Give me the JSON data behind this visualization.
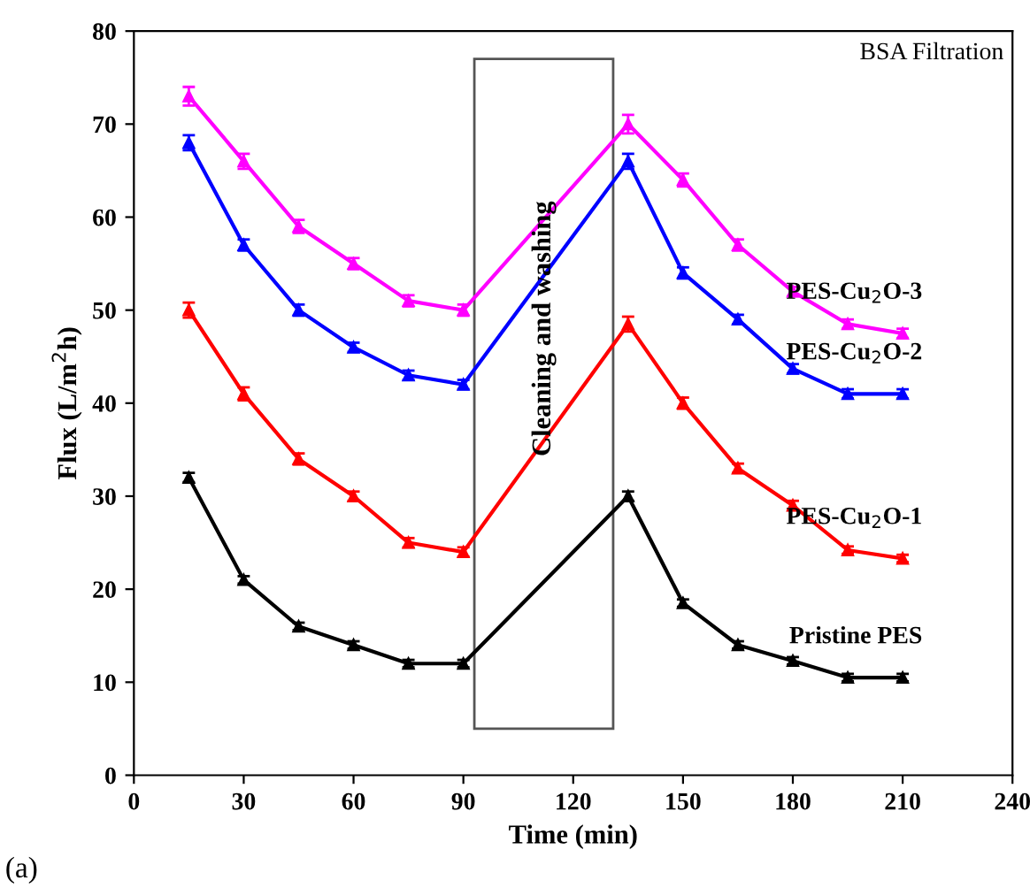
{
  "chart_data": {
    "type": "line",
    "xlabel": "Time (min)",
    "ylabel": "Flux (L/m$^{2}$h)",
    "x": [
      15,
      30,
      45,
      60,
      75,
      90,
      135,
      150,
      165,
      180,
      195,
      210
    ],
    "series": [
      {
        "name": "Pristine PES",
        "color": "#000000",
        "values": [
          32,
          21,
          16,
          14,
          12,
          12,
          30,
          18.5,
          14,
          12.3,
          10.5,
          10.5
        ],
        "errors": [
          0.5,
          0.4,
          0.4,
          0.4,
          0.4,
          0.4,
          0.5,
          0.4,
          0.4,
          0.4,
          0.4,
          0.4
        ]
      },
      {
        "name": "PES-Cu$_{2}$O-1",
        "color": "#ff0000",
        "values": [
          50,
          41,
          34,
          30,
          25,
          24,
          48.5,
          40,
          33,
          29,
          24.2,
          23.3
        ],
        "errors": [
          0.8,
          0.7,
          0.6,
          0.5,
          0.5,
          0.5,
          0.8,
          0.6,
          0.5,
          0.5,
          0.4,
          0.4
        ]
      },
      {
        "name": "PES-Cu$_{2}$O-2",
        "color": "#0000ff",
        "values": [
          68,
          57,
          50,
          46,
          43,
          42,
          66,
          54,
          49,
          43.7,
          41,
          41
        ],
        "errors": [
          0.8,
          0.6,
          0.6,
          0.5,
          0.5,
          0.5,
          0.8,
          0.6,
          0.5,
          0.5,
          0.5,
          0.5
        ]
      },
      {
        "name": "PES-Cu$_{2}$O-3",
        "color": "#ff00ff",
        "values": [
          73,
          66,
          59,
          55,
          51,
          50,
          70,
          64,
          57,
          52,
          48.5,
          47.5
        ],
        "errors": [
          1,
          0.8,
          0.7,
          0.6,
          0.6,
          0.6,
          1,
          0.7,
          0.6,
          0.5,
          0.5,
          0.5
        ]
      }
    ],
    "annotations": [
      "BSA Filtration",
      "(a)",
      "Cleaning and washing"
    ],
    "xlim": [
      0,
      240
    ],
    "xticks": [
      0,
      30,
      60,
      90,
      120,
      150,
      180,
      210,
      240
    ],
    "ylim": [
      0,
      80
    ],
    "yticks": [
      0,
      10,
      20,
      30,
      40,
      50,
      60,
      70,
      80
    ],
    "marker": "triangle",
    "line_style": "solid",
    "legend": false,
    "grid": false
  }
}
